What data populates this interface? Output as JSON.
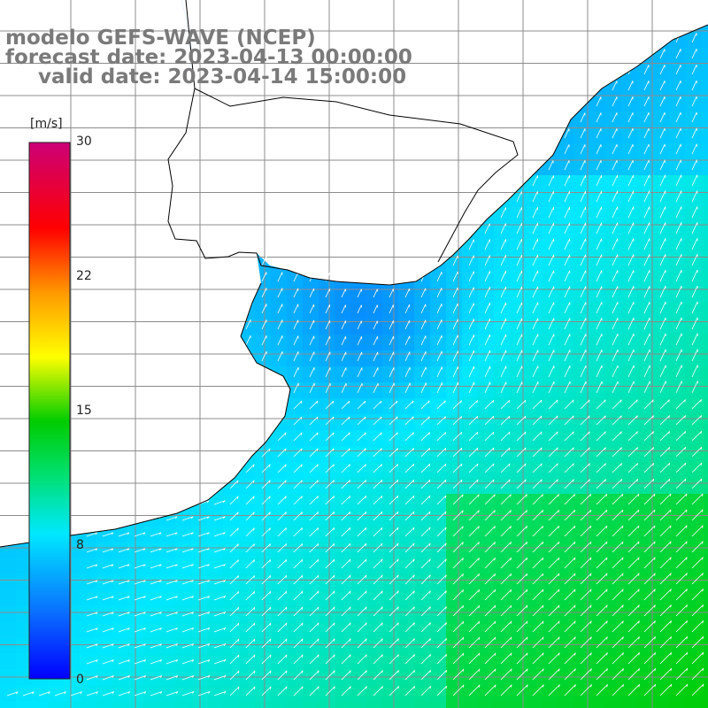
{
  "title": {
    "line1": "modelo GEFS-WAVE (NCEP)",
    "line2": "forecast date: 2023-04-13 00:00:00",
    "line3": "valid date: 2023-04-14 15:00:00"
  },
  "colorbar": {
    "unit": "[m/s]",
    "range": [
      0,
      30
    ],
    "ticks": [
      {
        "value": 30,
        "label": "30"
      },
      {
        "value": 22,
        "label": "22"
      },
      {
        "value": 15,
        "label": "15"
      },
      {
        "value": 8,
        "label": "8"
      },
      {
        "value": 0,
        "label": "0"
      }
    ],
    "palette": [
      "#0000ff",
      "#0a6cff",
      "#00d8ff",
      "#00e070",
      "#00cc00",
      "#ffff00",
      "#ff9900",
      "#ff0000",
      "#cc0077"
    ]
  },
  "map": {
    "land_color": "#ffffff",
    "coast_color": "#000000",
    "grid_color": "#8c8c8c",
    "vector_color": "#ffffff"
  }
}
